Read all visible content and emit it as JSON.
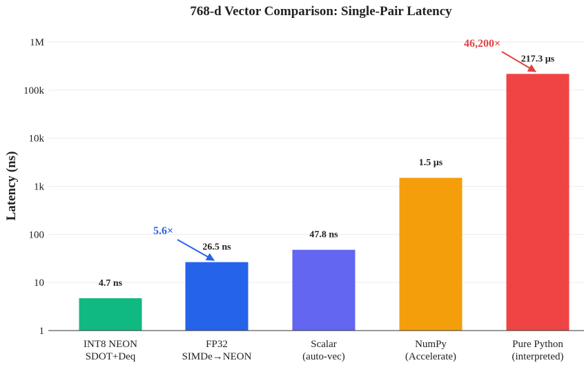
{
  "chart_data": {
    "type": "bar",
    "title": "768-d Vector Comparison: Single-Pair Latency",
    "xlabel": "",
    "ylabel": "Latency (ns)",
    "yscale": "log",
    "ylim": [
      1,
      1000000
    ],
    "yticks": [
      1,
      10,
      100,
      1000,
      10000,
      100000,
      1000000
    ],
    "ytick_labels": [
      "1",
      "10",
      "100",
      "1k",
      "10k",
      "100k",
      "1M"
    ],
    "grid": true,
    "categories": [
      [
        "INT8 NEON",
        "SDOT+Deq"
      ],
      [
        "FP32",
        "SIMDe→NEON"
      ],
      [
        "Scalar",
        "(auto-vec)"
      ],
      [
        "NumPy",
        "(Accelerate)"
      ],
      [
        "Pure Python",
        "(interpreted)"
      ]
    ],
    "values": [
      4.7,
      26.5,
      47.8,
      1500,
      217300
    ],
    "value_labels": [
      "4.7 ns",
      "26.5 ns",
      "47.8 ns",
      "1.5 µs",
      "217.3 µs"
    ],
    "colors": [
      "#10b981",
      "#2563eb",
      "#6366f1",
      "#f59e0b",
      "#ef4444"
    ],
    "annotations": [
      {
        "text": "5.6×",
        "target_index": 1,
        "color": "#2563eb"
      },
      {
        "text": "46,200×",
        "target_index": 4,
        "color": "#e04343"
      }
    ]
  }
}
